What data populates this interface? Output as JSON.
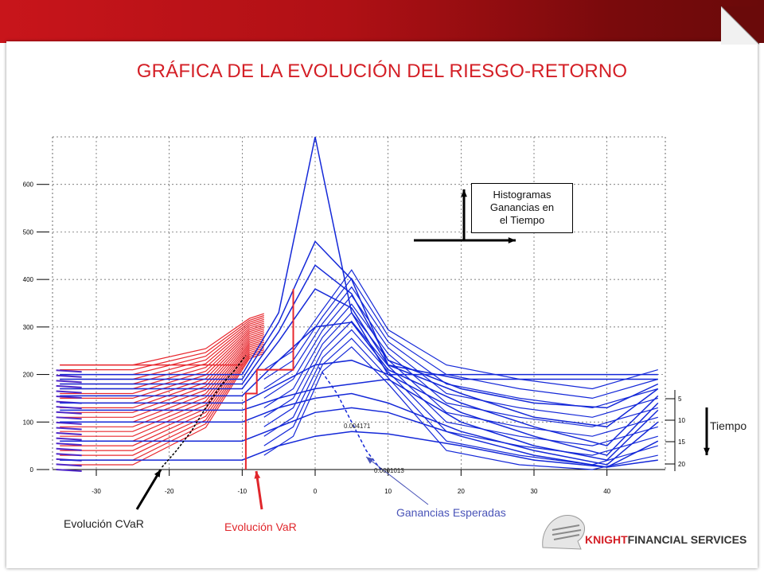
{
  "title": "GRÁFICA DE LA EVOLUCIÓN DEL RIESGO-RETORNO",
  "annotations": {
    "histogram_box": [
      "Histogramas",
      "Ganancias en",
      "el Tiempo"
    ],
    "tiempo": "Tiempo",
    "cvar": "Evolución CVaR",
    "var": "Evolución VaR",
    "ganancias": "Ganancias Esperadas",
    "value_label_1": "0.004171",
    "value_label_2": "0.0001013"
  },
  "logo": {
    "brand_bold": "KNIGHT",
    "brand_rest": "FINANCIAL SERVICES"
  },
  "colors": {
    "accent_red": "#d41f26",
    "blue_series": "#1428d8",
    "red_series": "#e8282e"
  },
  "chart_data": {
    "type": "line",
    "title": "GRÁFICA DE LA EVOLUCIÓN DEL RIESGO-RETORNO",
    "xlabel": "",
    "ylabel": "",
    "xlim": [
      -36,
      48
    ],
    "ylim": [
      0,
      700
    ],
    "x_ticks": [
      -30,
      -20,
      -10,
      0,
      10,
      20,
      30,
      40
    ],
    "y_ticks": [
      0,
      100,
      200,
      300,
      400,
      500,
      600
    ],
    "right_axis_ticks": [
      5,
      10,
      15,
      20
    ],
    "grid": true,
    "series": [
      {
        "x": [
          -35,
          -10,
          -5,
          0,
          5,
          10,
          20,
          30,
          40,
          47
        ],
        "y": [
          200,
          200,
          330,
          700,
          330,
          200,
          200,
          200,
          200,
          200
        ]
      },
      {
        "x": [
          -35,
          -10,
          -5,
          0,
          5,
          10,
          20,
          30,
          40,
          47
        ],
        "y": [
          190,
          190,
          310,
          480,
          400,
          220,
          190,
          190,
          190,
          190
        ]
      },
      {
        "x": [
          -35,
          -10,
          -5,
          0,
          5,
          10,
          20,
          30,
          40,
          47
        ],
        "y": [
          180,
          180,
          290,
          430,
          370,
          230,
          170,
          140,
          130,
          180
        ]
      },
      {
        "x": [
          -35,
          -10,
          -5,
          0,
          5,
          10,
          20,
          30,
          40,
          47
        ],
        "y": [
          170,
          170,
          270,
          380,
          340,
          220,
          160,
          110,
          90,
          170
        ]
      },
      {
        "x": [
          -35,
          -10,
          -5,
          0,
          5,
          10,
          20,
          30,
          40,
          47
        ],
        "y": [
          155,
          155,
          230,
          300,
          310,
          210,
          140,
          90,
          50,
          155
        ]
      },
      {
        "x": [
          -35,
          -10,
          -5,
          0,
          5,
          10,
          20,
          30,
          40,
          47
        ],
        "y": [
          140,
          140,
          180,
          220,
          230,
          200,
          120,
          70,
          30,
          140
        ]
      },
      {
        "x": [
          -35,
          -10,
          -5,
          0,
          5,
          10,
          20,
          30,
          40,
          47
        ],
        "y": [
          125,
          125,
          150,
          170,
          180,
          190,
          100,
          50,
          20,
          125
        ]
      },
      {
        "x": [
          -35,
          -10,
          -5,
          0,
          5,
          10,
          20,
          30,
          40,
          47
        ],
        "y": [
          100,
          100,
          130,
          150,
          160,
          140,
          80,
          40,
          10,
          100
        ]
      },
      {
        "x": [
          -35,
          -10,
          -5,
          0,
          5,
          10,
          20,
          30,
          40,
          47
        ],
        "y": [
          60,
          60,
          90,
          120,
          130,
          120,
          70,
          30,
          5,
          60
        ]
      },
      {
        "x": [
          -35,
          -10,
          -5,
          0,
          5,
          10,
          20,
          30,
          40,
          47
        ],
        "y": [
          20,
          20,
          50,
          70,
          80,
          75,
          50,
          20,
          5,
          20
        ]
      }
    ],
    "var_path": {
      "x": [
        -9.5,
        -9.5,
        -8,
        -8,
        -5,
        -3,
        -3
      ],
      "y": [
        0,
        160,
        160,
        210,
        210,
        210,
        380
      ]
    },
    "cvar_path": {
      "x": [
        -21,
        -19,
        -17,
        -15,
        -13,
        -11,
        -9.5
      ],
      "y": [
        5,
        40,
        80,
        130,
        175,
        210,
        240
      ]
    },
    "expected_gain_path": {
      "x": [
        0.5,
        3,
        5,
        7,
        9
      ],
      "y": [
        215,
        160,
        100,
        40,
        0
      ]
    }
  }
}
